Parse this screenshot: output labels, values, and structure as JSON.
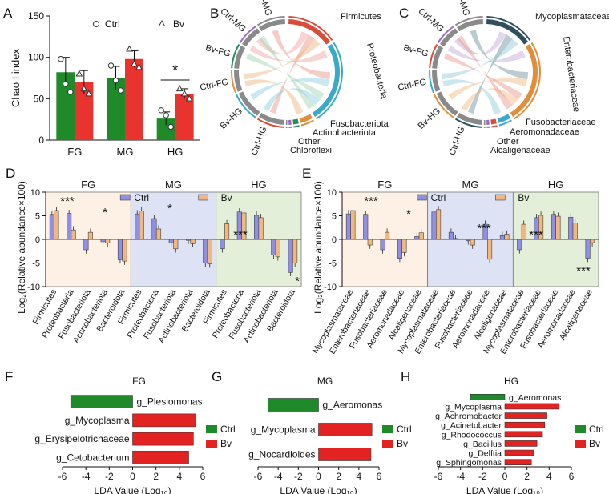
{
  "colors": {
    "ctrl_green": "#1f8a2a",
    "bv_red": "#e8332f",
    "ctrl_purple": "#8f8fe6",
    "bv_orange": "#f1b77e",
    "fg_bg": "#fdf0e4",
    "mg_bg": "#dde3f4",
    "hg_bg": "#e3efd9",
    "lda_green": "#1f8a2a",
    "lda_red": "#e32222"
  },
  "panels": {
    "A": {
      "letter": "A",
      "ylabel": "Chao I index",
      "legend": [
        "Ctrl",
        "Bv"
      ],
      "star": "*"
    },
    "B": {
      "letter": "B",
      "sample_labels": [
        "Bv-MG",
        "Ctrl-MG",
        "Bv-FG",
        "Ctrl-FG",
        "Bv-HG",
        "Ctrl-HG"
      ],
      "taxa_labels": [
        "Firmicutes",
        "Proteobacteria",
        "Fusobacteriota",
        "Actinobacteriota",
        "Other",
        "Chloroflexi"
      ]
    },
    "C": {
      "letter": "C",
      "sample_labels": [
        "Bv-MG",
        "Ctrl-MG",
        "Bv-FG",
        "Ctrl-FG",
        "Bv-HG",
        "Ctrl-HG"
      ],
      "taxa_labels": [
        "Mycoplasmataceae",
        "Enterobacteriaceae",
        "Fusobacteriaceae",
        "Aeromonadaceae",
        "Other",
        "Alcaligenaceae"
      ]
    },
    "D": {
      "letter": "D",
      "ylabel": "Log₂(Relative abundance×100)",
      "groups": [
        "FG",
        "MG",
        "HG"
      ],
      "legend": [
        "Ctrl",
        "Bv"
      ],
      "stars": [
        "***",
        "*",
        "*",
        "***",
        "*"
      ]
    },
    "E": {
      "letter": "E",
      "ylabel": "Log₂(Relative abundance×100)",
      "groups": [
        "FG",
        "MG",
        "HG"
      ],
      "legend": [
        "Ctrl",
        "Bv"
      ],
      "stars": [
        "***",
        "*",
        "***",
        "***",
        "***"
      ]
    },
    "F": {
      "letter": "F",
      "title": "FG",
      "xlabel": "LDA Value (Log₁₀)",
      "legend": [
        "Ctrl",
        "Bv"
      ]
    },
    "G": {
      "letter": "G",
      "title": "MG",
      "xlabel": "LDA Value (Log₁₀)",
      "legend": [
        "Ctrl",
        "Bv"
      ]
    },
    "H": {
      "letter": "H",
      "title": "HG",
      "xlabel": "LDA Value (Log₁₀)",
      "legend": [
        "Ctrl",
        "Bv"
      ]
    }
  },
  "chart_data": [
    {
      "id": "A",
      "type": "bar",
      "categories": [
        "FG",
        "MG",
        "HG"
      ],
      "series": [
        {
          "name": "Ctrl",
          "values": [
            82,
            75,
            26
          ],
          "errors": [
            18,
            14,
            8
          ],
          "points": [
            [
              98,
              68,
              58
            ],
            [
              90,
              72,
              60
            ],
            [
              36,
              30,
              16
            ]
          ]
        },
        {
          "name": "Bv",
          "values": [
            70,
            98,
            56
          ],
          "errors": [
            14,
            10,
            6
          ],
          "points": [
            [
              80,
              62,
              56
            ],
            [
              110,
              92,
              88
            ],
            [
              62,
              56,
              50
            ]
          ]
        }
      ],
      "title": "",
      "xlabel": "",
      "ylabel": "Chao I index",
      "ylim": [
        0,
        150
      ],
      "yticks": [
        0,
        50,
        100,
        150
      ],
      "significance": [
        {
          "category": "HG",
          "label": "*"
        }
      ]
    },
    {
      "id": "D",
      "type": "bar",
      "groups": [
        "FG",
        "MG",
        "HG"
      ],
      "categories": [
        "Firmicutes",
        "Proteobacteria",
        "Fusobacteriota",
        "Actinobacteriota",
        "Bacteroidota"
      ],
      "series": [
        {
          "name": "Ctrl",
          "values": {
            "FG": [
              5.3,
              5.5,
              -2.2,
              -0.5,
              -4.3
            ],
            "MG": [
              5.4,
              4.4,
              -0.7,
              -0.2,
              -5.0
            ],
            "HG": [
              -2.0,
              5.8,
              5.1,
              -3.3,
              -7.0
            ]
          }
        },
        {
          "name": "Bv",
          "values": {
            "FG": [
              6.1,
              2.0,
              1.5,
              -0.8,
              -4.6
            ],
            "MG": [
              6.0,
              2.2,
              -2.0,
              -0.9,
              -5.2
            ],
            "HG": [
              3.3,
              5.6,
              4.6,
              -3.7,
              -5.0
            ]
          }
        }
      ],
      "ylabel": "Log₂(Relative abundance×100)",
      "ylim": [
        -10,
        10
      ],
      "yticks": [
        -10,
        -5,
        0,
        5,
        10
      ]
    },
    {
      "id": "E",
      "type": "bar",
      "groups": [
        "FG",
        "MG",
        "HG"
      ],
      "categories": [
        "Mycoplasmataceae",
        "Enterobacteriaceae",
        "Fusobacteriaceae",
        "Aeromonadaceae",
        "Alcaligenaceae"
      ],
      "series": [
        {
          "name": "Ctrl",
          "values": {
            "FG": [
              5.4,
              5.3,
              -2.2,
              -4.0,
              0.6
            ],
            "MG": [
              5.8,
              1.5,
              -0.3,
              3.2,
              0.8
            ],
            "HG": [
              -2.2,
              4.6,
              5.3,
              4.7,
              -4.0
            ]
          }
        },
        {
          "name": "Bv",
          "values": {
            "FG": [
              6.1,
              -1.2,
              1.5,
              -2.8,
              1.4
            ],
            "MG": [
              6.3,
              0.2,
              -1.2,
              -4.2,
              1.1
            ],
            "HG": [
              3.2,
              5.1,
              4.9,
              3.5,
              -0.7
            ]
          }
        }
      ],
      "ylabel": "Log₂(Relative abundance×100)",
      "ylim": [
        -10,
        10
      ],
      "yticks": [
        -10,
        -5,
        0,
        5,
        10
      ]
    },
    {
      "id": "F",
      "type": "bar",
      "orientation": "horizontal",
      "title": "FG",
      "xlabel": "LDA Value (Log₁₀)",
      "xlim": [
        -6,
        6
      ],
      "xticks": [
        -6,
        -4,
        -2,
        0,
        2,
        4,
        6
      ],
      "bars": [
        {
          "label": "g_Plesiomonas",
          "value": -5.3,
          "group": "Ctrl"
        },
        {
          "label": "g_Mycoplasma",
          "value": 5.4,
          "group": "Bv"
        },
        {
          "label": "g_Erysipelotrichaceae",
          "value": 5.2,
          "group": "Bv"
        },
        {
          "label": "g_Cetobacterium",
          "value": 4.8,
          "group": "Bv"
        }
      ]
    },
    {
      "id": "G",
      "type": "bar",
      "orientation": "horizontal",
      "title": "MG",
      "xlabel": "LDA Value (Log₁₀)",
      "xlim": [
        -6,
        6
      ],
      "xticks": [
        -6,
        -4,
        -2,
        0,
        2,
        4,
        6
      ],
      "bars": [
        {
          "label": "g_Aeromonas",
          "value": -5.0,
          "group": "Ctrl"
        },
        {
          "label": "g_Mycoplasma",
          "value": 5.3,
          "group": "Bv"
        },
        {
          "label": "g_Nocardioides",
          "value": 5.2,
          "group": "Bv"
        }
      ]
    },
    {
      "id": "H",
      "type": "bar",
      "orientation": "horizontal",
      "title": "HG",
      "xlabel": "LDA Value (Log₁₀)",
      "xlim": [
        -6,
        6
      ],
      "xticks": [
        -6,
        -4,
        -2,
        0,
        2,
        4,
        6
      ],
      "bars": [
        {
          "label": "g_Aeromonas",
          "value": -3.1,
          "group": "Ctrl"
        },
        {
          "label": "g_Mycoplasma",
          "value": 4.9,
          "group": "Bv"
        },
        {
          "label": "g_Achromobacter",
          "value": 3.8,
          "group": "Bv"
        },
        {
          "label": "g_Acinetobacter",
          "value": 3.6,
          "group": "Bv"
        },
        {
          "label": "g_Rhodococcus",
          "value": 3.4,
          "group": "Bv"
        },
        {
          "label": "g_Bacillus",
          "value": 2.9,
          "group": "Bv"
        },
        {
          "label": "g_Delftia",
          "value": 2.6,
          "group": "Bv"
        },
        {
          "label": "g_Sphingomonas",
          "value": 2.4,
          "group": "Bv"
        }
      ]
    }
  ]
}
